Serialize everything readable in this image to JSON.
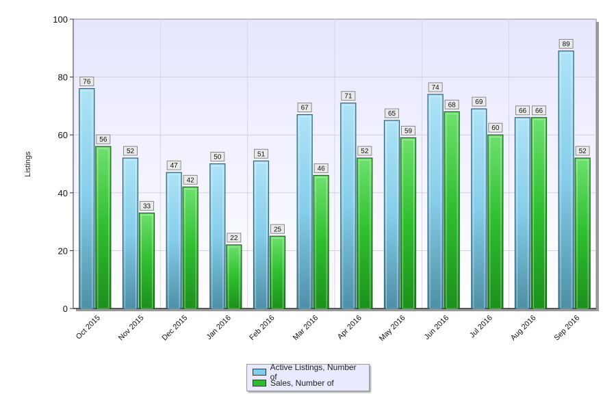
{
  "chart_data": {
    "type": "bar",
    "title": "",
    "xlabel": "",
    "ylabel": "Listings",
    "ylim": [
      0,
      100
    ],
    "yticks": [
      0,
      20,
      40,
      60,
      80,
      100
    ],
    "grid": true,
    "legend_position": "bottom",
    "categories": [
      "Oct 2015",
      "Nov 2015",
      "Dec 2015",
      "Jan 2016",
      "Feb 2016",
      "Mar 2016",
      "Apr 2016",
      "May 2016",
      "Jun 2016",
      "Jul 2016",
      "Aug 2016",
      "Sep 2016"
    ],
    "series": [
      {
        "name": "Active Listings, Number of",
        "color": "#7ecfee",
        "values": [
          76,
          52,
          47,
          50,
          51,
          67,
          71,
          65,
          74,
          69,
          66,
          89
        ]
      },
      {
        "name": "Sales, Number of",
        "color": "#2ebd2e",
        "values": [
          56,
          33,
          42,
          22,
          25,
          46,
          52,
          59,
          68,
          60,
          66,
          52
        ]
      }
    ]
  }
}
